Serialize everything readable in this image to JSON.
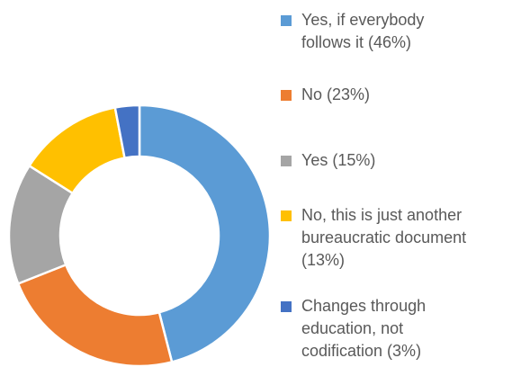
{
  "chart_data": {
    "type": "pie",
    "subtype": "donut",
    "title": "",
    "start_angle_deg": 0,
    "direction": "clockwise",
    "legend_position": "right",
    "slices": [
      {
        "label": "Yes, if everybody\nfollows it  (46%)",
        "value": 46,
        "color": "#5B9BD5"
      },
      {
        "label": "No (23%)",
        "value": 23,
        "color": "#ED7D31"
      },
      {
        "label": "Yes (15%)",
        "value": 15,
        "color": "#A5A5A5"
      },
      {
        "label": "No, this is just another\nbureaucratic document\n(13%)",
        "value": 13,
        "color": "#FFC000"
      },
      {
        "label": "Changes through\neducation, not\ncodification  (3%)",
        "value": 3,
        "color": "#4472C4"
      }
    ]
  }
}
